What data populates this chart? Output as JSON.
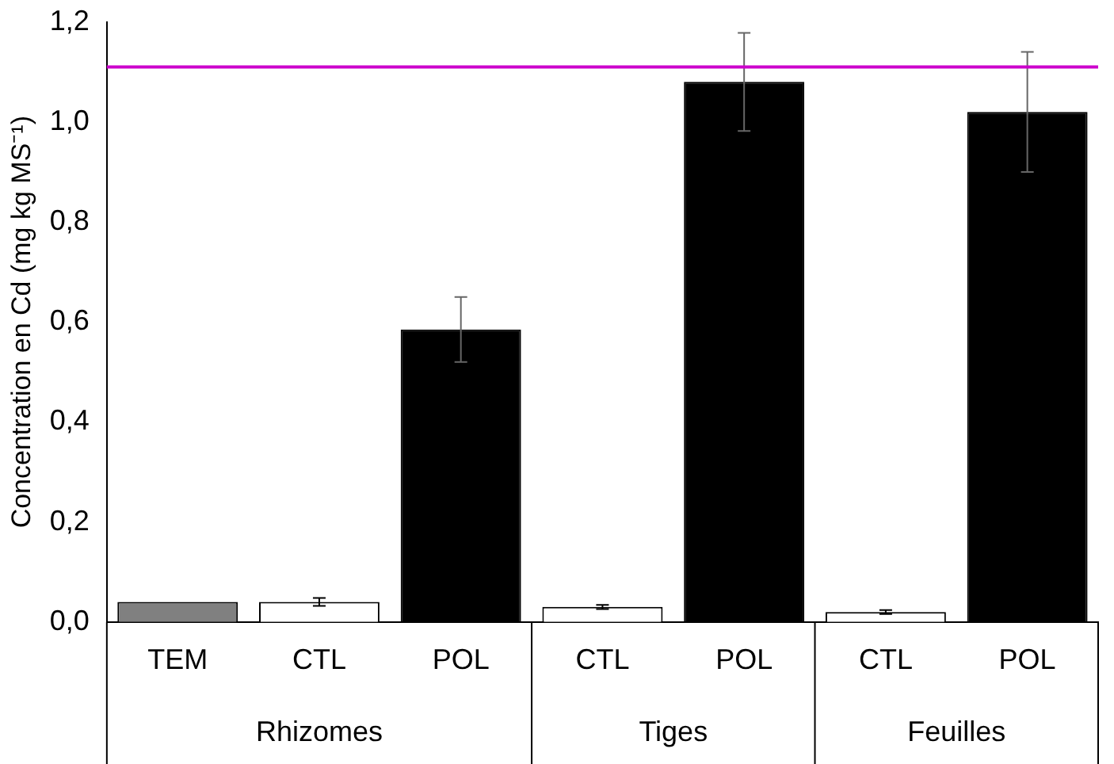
{
  "chart_data": {
    "type": "bar",
    "ylabel": "Concentration en Cd (mg kg MS⁻¹)",
    "categories": [
      "TEM",
      "CTL",
      "POL",
      "CTL",
      "POL",
      "CTL",
      "POL"
    ],
    "values": [
      0.04,
      0.04,
      0.585,
      0.03,
      1.08,
      0.02,
      1.02
    ],
    "colors": [
      "#808080",
      "#ffffff",
      "#000000",
      "#ffffff",
      "#000000",
      "#ffffff",
      "#000000"
    ],
    "errors": [
      null,
      0.008,
      0.065,
      0.004,
      0.098,
      0.004,
      0.12
    ],
    "ylim": [
      0,
      1.2
    ],
    "yticks": [
      {
        "value": 0,
        "label": "0,0"
      },
      {
        "value": 0.2,
        "label": "0,2"
      },
      {
        "value": 0.4,
        "label": "0,4"
      },
      {
        "value": 0.6,
        "label": "0,6"
      },
      {
        "value": 0.8,
        "label": "0,8"
      },
      {
        "value": 1,
        "label": "1,0"
      },
      {
        "value": 1.2,
        "label": "1,2"
      }
    ],
    "ref_lines": [
      {
        "axis": "y",
        "value": 1.11,
        "color": "#cc00cc"
      }
    ],
    "annotations": [
      "Rhizomes",
      "Tiges",
      "Feuilles"
    ],
    "grid": false,
    "legend": false
  }
}
